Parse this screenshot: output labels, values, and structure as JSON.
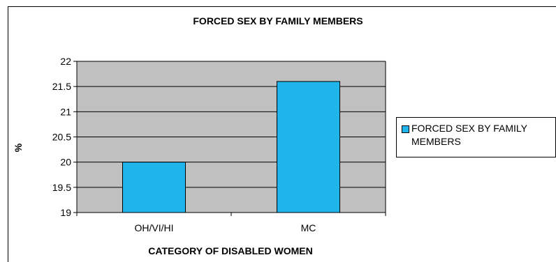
{
  "chart_data": {
    "type": "bar",
    "title": "FORCED SEX BY FAMILY MEMBERS",
    "xlabel": "CATEGORY OF DISABLED WOMEN",
    "ylabel": "%",
    "categories": [
      "OH/VI/HI",
      "MC"
    ],
    "series": [
      {
        "name": "FORCED SEX BY FAMILY MEMBERS",
        "values": [
          20,
          21.6
        ]
      }
    ],
    "ylim": [
      19,
      22
    ],
    "yticks": [
      "19",
      "19.5",
      "20",
      "20.5",
      "21",
      "21.5",
      "22"
    ],
    "grid": true,
    "legend_position": "right",
    "colors": {
      "bar": "#1fb4ec",
      "plot_bg": "#c0c0c0",
      "grid": "#000000"
    }
  }
}
